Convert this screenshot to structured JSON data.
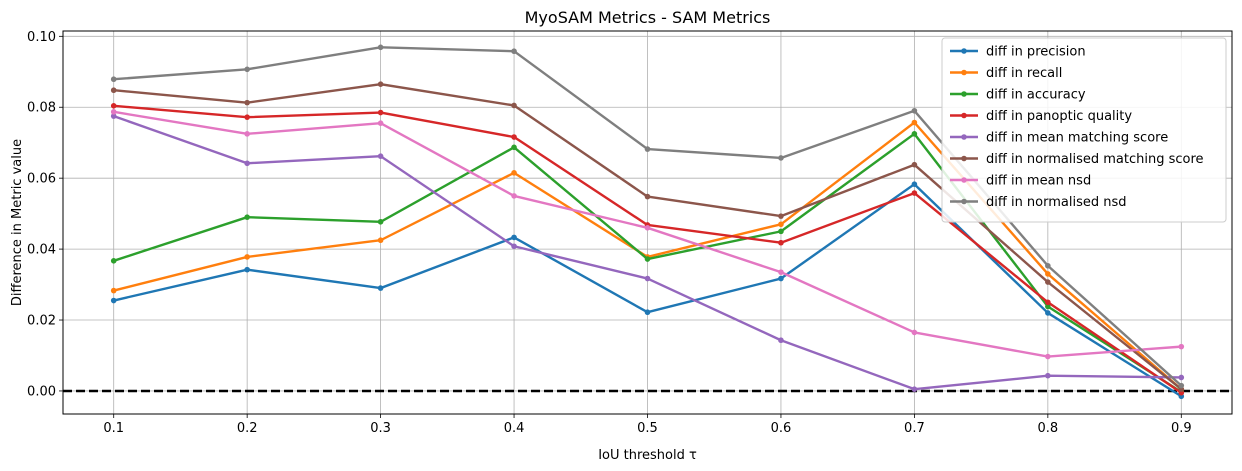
{
  "chart_data": {
    "type": "line",
    "title": "MyoSAM Metrics - SAM Metrics",
    "xlabel": "IoU threshold τ",
    "ylabel": "Difference in Metric value",
    "x": [
      0.1,
      0.2,
      0.3,
      0.4,
      0.5,
      0.6,
      0.7,
      0.8,
      0.9
    ],
    "x_ticks": [
      "0.1",
      "0.2",
      "0.3",
      "0.4",
      "0.5",
      "0.6",
      "0.7",
      "0.8",
      "0.9"
    ],
    "y_ticks": [
      "0.00",
      "0.02",
      "0.04",
      "0.06",
      "0.08",
      "0.10"
    ],
    "xlim": [
      0.062,
      0.938
    ],
    "ylim": [
      -0.0065,
      0.1015
    ],
    "grid": true,
    "legend_position": "top-right",
    "reference_line": {
      "y": 0.0,
      "style": "dashed",
      "color": "#000000"
    },
    "series": [
      {
        "name": "diff in precision",
        "color": "#1f77b4",
        "values": [
          0.0255,
          0.0342,
          0.029,
          0.0433,
          0.0222,
          0.0317,
          0.0583,
          0.022,
          -0.0015
        ]
      },
      {
        "name": "diff in recall",
        "color": "#ff7f0e",
        "values": [
          0.0283,
          0.0378,
          0.0425,
          0.0615,
          0.0378,
          0.047,
          0.0757,
          0.033,
          0.0005
        ]
      },
      {
        "name": "diff in accuracy",
        "color": "#2ca02c",
        "values": [
          0.0367,
          0.049,
          0.0477,
          0.0687,
          0.0372,
          0.045,
          0.0725,
          0.0238,
          -0.0003
        ]
      },
      {
        "name": "diff in panoptic quality",
        "color": "#d62728",
        "values": [
          0.0804,
          0.0772,
          0.0785,
          0.0716,
          0.0468,
          0.0418,
          0.0558,
          0.025,
          -0.0005
        ]
      },
      {
        "name": "diff in mean matching score",
        "color": "#9467bd",
        "values": [
          0.0775,
          0.0642,
          0.0662,
          0.0408,
          0.0317,
          0.0143,
          0.0005,
          0.0043,
          0.0038
        ]
      },
      {
        "name": "diff in normalised matching score",
        "color": "#8c564b",
        "values": [
          0.0848,
          0.0813,
          0.0865,
          0.0805,
          0.0548,
          0.0493,
          0.0638,
          0.0307,
          0.0005
        ]
      },
      {
        "name": "diff in mean nsd",
        "color": "#e377c2",
        "values": [
          0.0787,
          0.0725,
          0.0755,
          0.055,
          0.046,
          0.0335,
          0.0165,
          0.0097,
          0.0125
        ]
      },
      {
        "name": "diff in normalised nsd",
        "color": "#7f7f7f",
        "values": [
          0.0879,
          0.0907,
          0.0969,
          0.0958,
          0.0682,
          0.0657,
          0.079,
          0.0353,
          0.0015
        ]
      }
    ]
  }
}
